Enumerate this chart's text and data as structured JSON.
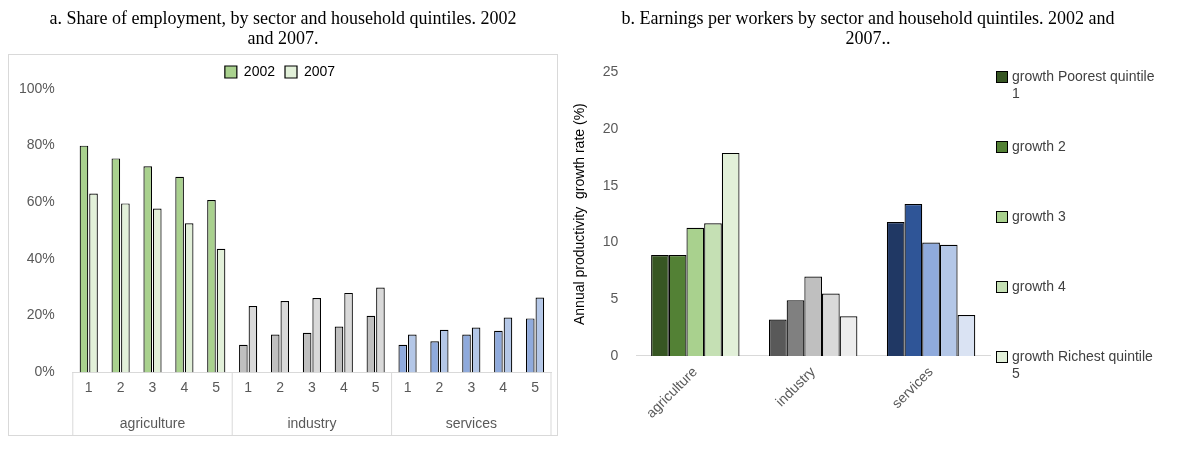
{
  "chart_data": [
    {
      "type": "bar",
      "title": "a. Share of employment, by sector and household quintiles. 2002 and 2007.",
      "categories": [
        "1",
        "2",
        "3",
        "4",
        "5",
        "1",
        "2",
        "3",
        "4",
        "5",
        "1",
        "2",
        "3",
        "4",
        "5"
      ],
      "annotations": [
        "agriculture",
        "industry",
        "services"
      ],
      "legend": "top",
      "ylim": [
        0,
        100
      ],
      "yticks": [
        {
          "value": 0,
          "label": "0%"
        },
        {
          "value": 20,
          "label": "20%"
        },
        {
          "value": 40,
          "label": "40%"
        },
        {
          "value": 60,
          "label": "60%"
        },
        {
          "value": 80,
          "label": "80%"
        },
        {
          "value": 100,
          "label": "100%"
        }
      ],
      "series": [
        {
          "name": "2002",
          "color": "#a9d18e",
          "colors": [
            "#a9d18e",
            "#a9d18e",
            "#a9d18e",
            "#a9d18e",
            "#a9d18e",
            "#bfbfbf",
            "#bfbfbf",
            "#bfbfbf",
            "#bfbfbf",
            "#bfbfbf",
            "#8faadc",
            "#8faadc",
            "#8faadc",
            "#8faadc",
            "#8faadc"
          ],
          "values": [
            80,
            75.5,
            72.7,
            69,
            60.8,
            9.7,
            13.3,
            13.9,
            16.1,
            19.9,
            9.7,
            10.9,
            13.3,
            14.6,
            19
          ]
        },
        {
          "name": "2007",
          "color": "#e2f0d9",
          "colors": [
            "#e2f0d9",
            "#e2f0d9",
            "#e2f0d9",
            "#e2f0d9",
            "#e2f0d9",
            "#d9d9d9",
            "#d9d9d9",
            "#d9d9d9",
            "#d9d9d9",
            "#d9d9d9",
            "#b4c7e7",
            "#b4c7e7",
            "#b4c7e7",
            "#b4c7e7",
            "#b4c7e7"
          ],
          "values": [
            63.1,
            59.6,
            57.8,
            52.6,
            43.6,
            23.4,
            25.1,
            26.2,
            28,
            29.9,
            13.3,
            15,
            15.8,
            19.3,
            26.4
          ]
        }
      ]
    },
    {
      "type": "bar",
      "title": "b. Earnings per workers by sector and household quintiles. 2002 and 2007..",
      "categories": [
        "agriculture",
        "industry",
        "services"
      ],
      "ylabel": "Annual productivity  growth rate (%)",
      "legend": "right",
      "ylim": [
        0,
        25
      ],
      "yticks": [
        0,
        5,
        10,
        15,
        20,
        25
      ],
      "series": [
        {
          "name": "growth Poorest quintile 1",
          "color": "#375623",
          "colors": [
            "#375623",
            "#595959",
            "#203864"
          ],
          "values": [
            8.9,
            3.2,
            11.8
          ]
        },
        {
          "name": "growth 2",
          "color": "#538135",
          "colors": [
            "#538135",
            "#808080",
            "#2f5597"
          ],
          "values": [
            8.9,
            4.9,
            13.4
          ]
        },
        {
          "name": "growth 3",
          "color": "#a9d18e",
          "colors": [
            "#a9d18e",
            "#bfbfbf",
            "#8faadc"
          ],
          "values": [
            11.3,
            7,
            10
          ]
        },
        {
          "name": "growth 4",
          "color": "#c5e0b4",
          "colors": [
            "#c5e0b4",
            "#d9d9d9",
            "#b4c7e7"
          ],
          "values": [
            11.7,
            5.5,
            9.8
          ]
        },
        {
          "name": "growth Richest quintile 5",
          "color": "#e2f0d9",
          "colors": [
            "#e2f0d9",
            "#ededed",
            "#dae3f3"
          ],
          "values": [
            17.9,
            3.5,
            3.6
          ]
        }
      ]
    }
  ]
}
